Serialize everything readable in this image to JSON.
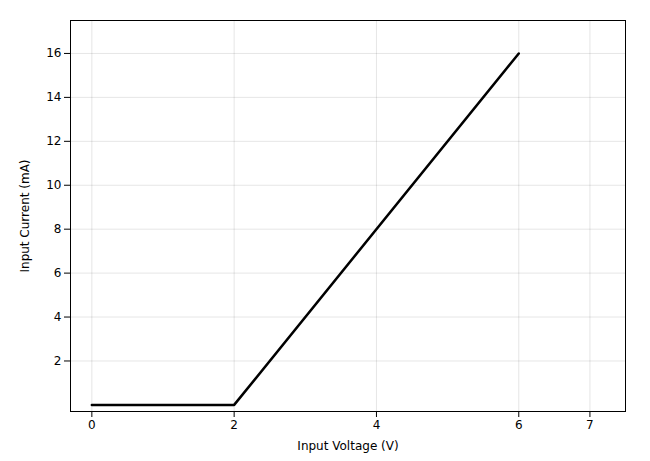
{
  "chart_data": {
    "type": "line",
    "x": [
      0,
      2,
      6
    ],
    "values": [
      0,
      0,
      16
    ],
    "color": "#000000",
    "xlabel": "Input Voltage (V)",
    "ylabel": "Input Current (mA)",
    "xlim": [
      -0.3,
      7.5
    ],
    "ylim": [
      -0.3,
      17.5
    ],
    "xticks": [
      0,
      2,
      4,
      6,
      7
    ],
    "yticks": [
      2,
      4,
      6,
      8,
      10,
      12,
      14,
      16
    ],
    "grid": true
  }
}
